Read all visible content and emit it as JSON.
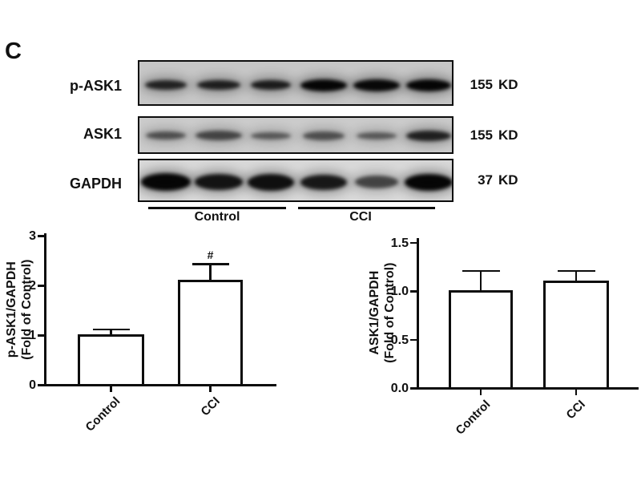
{
  "panel_label": "C",
  "blot": {
    "group_labels": [
      "Control",
      "CCI"
    ],
    "num_lanes": 6,
    "rows": [
      {
        "label": "p-ASK1",
        "mw": "155 KD",
        "bands": [
          {
            "w": 52,
            "h": 12,
            "d": 0.78
          },
          {
            "w": 54,
            "h": 12,
            "d": 0.8
          },
          {
            "w": 50,
            "h": 12,
            "d": 0.82
          },
          {
            "w": 58,
            "h": 15,
            "d": 0.96
          },
          {
            "w": 58,
            "h": 15,
            "d": 0.94
          },
          {
            "w": 56,
            "h": 15,
            "d": 0.96
          }
        ]
      },
      {
        "label": "ASK1",
        "mw": "155 KD",
        "bands": [
          {
            "w": 50,
            "h": 10,
            "d": 0.55
          },
          {
            "w": 58,
            "h": 12,
            "d": 0.6
          },
          {
            "w": 50,
            "h": 9,
            "d": 0.5
          },
          {
            "w": 52,
            "h": 11,
            "d": 0.55
          },
          {
            "w": 50,
            "h": 9,
            "d": 0.5
          },
          {
            "w": 56,
            "h": 13,
            "d": 0.8
          }
        ]
      },
      {
        "label": "GAPDH",
        "mw": "37 KD",
        "bands": [
          {
            "w": 62,
            "h": 22,
            "d": 0.96
          },
          {
            "w": 60,
            "h": 20,
            "d": 0.88
          },
          {
            "w": 58,
            "h": 21,
            "d": 0.9
          },
          {
            "w": 58,
            "h": 19,
            "d": 0.85
          },
          {
            "w": 54,
            "h": 16,
            "d": 0.62
          },
          {
            "w": 60,
            "h": 21,
            "d": 0.96
          }
        ]
      }
    ]
  },
  "chart_data": [
    {
      "type": "bar",
      "title": "",
      "categories": [
        "Control",
        "CCI"
      ],
      "values": [
        1.0,
        2.1
      ],
      "errors": [
        0.12,
        0.33
      ],
      "ylabel": "p-ASK1/GAPDH",
      "ylabel2": "(Fold of Control)",
      "xlabel": "",
      "yticks": [
        "0",
        "1",
        "2",
        "3"
      ],
      "ylim": [
        0,
        3
      ],
      "legend": "none",
      "grid": false,
      "annotations": [
        {
          "category": "CCI",
          "text": "#"
        }
      ]
    },
    {
      "type": "bar",
      "title": "",
      "categories": [
        "Control",
        "CCI"
      ],
      "values": [
        1.0,
        1.1
      ],
      "errors": [
        0.21,
        0.11
      ],
      "ylabel": "ASK1/GAPDH",
      "ylabel2": "(Fold of Control)",
      "xlabel": "",
      "yticks": [
        "0.0",
        "0.5",
        "1.0",
        "1.5"
      ],
      "ylim": [
        0,
        1.5
      ],
      "legend": "none",
      "grid": false,
      "annotations": []
    }
  ]
}
